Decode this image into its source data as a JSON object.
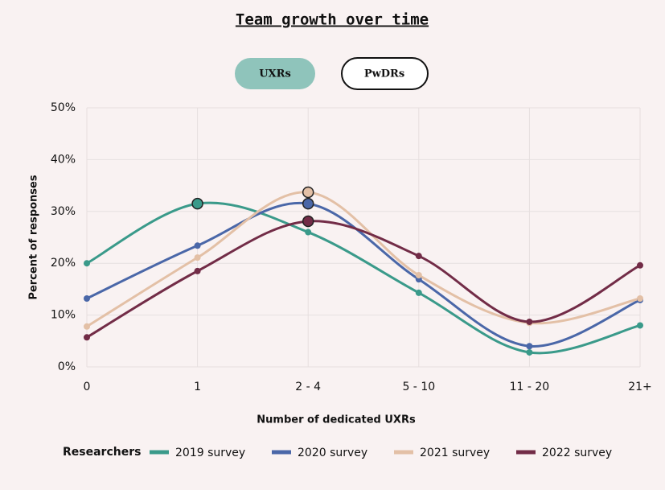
{
  "controls": [
    "UXRs",
    "PwDRs"
  ],
  "chart_data": {
    "type": "line",
    "title": "Team growth over time",
    "x_label": "Number of dedicated UXRs",
    "y_label": "Percent of responses",
    "legend_title": "Researchers",
    "categories": [
      "0",
      "1",
      "2 - 4",
      "5 - 10",
      "11 - 20",
      "21+"
    ],
    "series": [
      {
        "name": "2019 survey",
        "color": "#3a9a8a",
        "values": [
          20,
          31.5,
          26,
          14.3,
          2.8,
          8
        ]
      },
      {
        "name": "2020 survey",
        "color": "#4a67a8",
        "values": [
          13.2,
          23.4,
          31.5,
          16.9,
          4,
          12.9
        ]
      },
      {
        "name": "2021 survey",
        "color": "#e3c0a6",
        "values": [
          7.8,
          21.1,
          33.7,
          17.7,
          8.5,
          13.2
        ]
      },
      {
        "name": "2022 survey",
        "color": "#722c47",
        "values": [
          5.7,
          18.5,
          28.1,
          21.4,
          8.7,
          19.6
        ]
      }
    ],
    "ylim": [
      0,
      50
    ],
    "yticks": [
      {
        "value": 0,
        "label": "0%"
      },
      {
        "value": 10,
        "label": "10%"
      },
      {
        "value": 20,
        "label": "20%"
      },
      {
        "value": 30,
        "label": "30%"
      },
      {
        "value": 40,
        "label": "40%"
      },
      {
        "value": 50,
        "label": "50%"
      }
    ],
    "grid": true
  }
}
